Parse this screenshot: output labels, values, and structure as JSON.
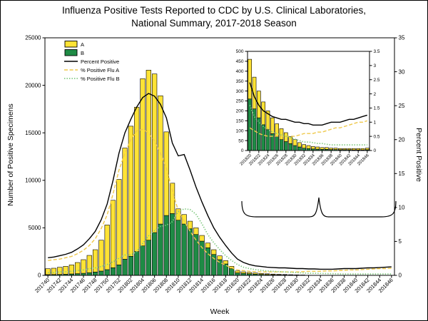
{
  "title": {
    "line1": "Influenza Positive Tests Reported to CDC by U.S. Clinical Laboratories,",
    "line2": "National Summary, 2017-2018 Season"
  },
  "axes": {
    "left_label": "Number of Positive Specimens",
    "right_label": "Percent Positive",
    "x_label": "Week"
  },
  "legend": [
    {
      "label": "A",
      "swatch": "box",
      "color_key": "flu_a_fill"
    },
    {
      "label": "B",
      "swatch": "box",
      "color_key": "flu_b_fill"
    },
    {
      "label": "Percent Positive",
      "swatch": "line",
      "color_key": "pct_total_line"
    },
    {
      "label": "% Positive Flu A",
      "swatch": "line-dashed",
      "color_key": "pct_a_line"
    },
    {
      "label": "% Positive Flu B",
      "swatch": "line-dotted",
      "color_key": "pct_b_line"
    }
  ],
  "colors": {
    "flu_a_fill": "#FFE335",
    "flu_b_fill": "#1E8B45",
    "pct_total_line": "#000000",
    "pct_a_line": "#EFC94C",
    "pct_b_line": "#7FC97F",
    "bar_outline": "#000000"
  },
  "chart_data": {
    "type": "bar",
    "subtype": "stacked-bars-with-percent-lines",
    "title": "Influenza Positive Tests Reported to CDC by U.S. Clinical Laboratories, National Summary, 2017-2018 Season",
    "xlabel": "Week",
    "ylabel_left": "Number of Positive Specimens",
    "ylabel_right": "Percent Positive",
    "ylim_left": [
      0,
      25000
    ],
    "ylim_right": [
      0,
      35
    ],
    "yticks_left": [
      0,
      5000,
      10000,
      15000,
      20000,
      25000
    ],
    "yticks_right": [
      0,
      5,
      10,
      15,
      20,
      25,
      30,
      35
    ],
    "xtick_every": 2,
    "grid": false,
    "legend_position": "top-left-inside",
    "categories": [
      "201740",
      "201741",
      "201742",
      "201743",
      "201744",
      "201745",
      "201746",
      "201747",
      "201748",
      "201749",
      "201750",
      "201751",
      "201752",
      "201801",
      "201802",
      "201803",
      "201804",
      "201805",
      "201806",
      "201807",
      "201808",
      "201809",
      "201810",
      "201811",
      "201812",
      "201813",
      "201814",
      "201815",
      "201816",
      "201817",
      "201818",
      "201819",
      "201820",
      "201821",
      "201822",
      "201823",
      "201824",
      "201825",
      "201826",
      "201827",
      "201828",
      "201829",
      "201830",
      "201831",
      "201832",
      "201833",
      "201834",
      "201835",
      "201836",
      "201837",
      "201838",
      "201839",
      "201840",
      "201841",
      "201842",
      "201843",
      "201844",
      "201845",
      "201846"
    ],
    "series": [
      {
        "name": "B",
        "kind": "bar",
        "stack": "specimens",
        "axis": "left",
        "color_key": "flu_b_fill",
        "values": [
          80,
          90,
          100,
          120,
          150,
          180,
          220,
          280,
          350,
          450,
          600,
          800,
          1100,
          1700,
          2000,
          2500,
          3100,
          3700,
          4500,
          5400,
          6300,
          6500,
          5800,
          5400,
          4900,
          4300,
          3600,
          2900,
          2200,
          1650,
          1200,
          700,
          260,
          210,
          165,
          130,
          105,
          85,
          70,
          55,
          45,
          35,
          25,
          18,
          12,
          10,
          8,
          7,
          6,
          6,
          5,
          5,
          4,
          4,
          4,
          3,
          3,
          3,
          4
        ]
      },
      {
        "name": "A",
        "kind": "bar",
        "stack": "specimens",
        "axis": "left",
        "color_key": "flu_a_fill",
        "values": [
          620,
          660,
          750,
          830,
          950,
          1170,
          1430,
          1820,
          2350,
          3250,
          4700,
          7100,
          9000,
          11700,
          13700,
          15200,
          17600,
          17900,
          16700,
          13500,
          8800,
          3200,
          1200,
          1000,
          800,
          700,
          600,
          500,
          500,
          400,
          350,
          250,
          200,
          160,
          135,
          115,
          95,
          80,
          65,
          55,
          45,
          35,
          30,
          22,
          18,
          15,
          12,
          11,
          9,
          9,
          7,
          7,
          6,
          6,
          6,
          7,
          7,
          7,
          8
        ]
      },
      {
        "name": "Percent Positive",
        "kind": "line",
        "axis": "right",
        "style": "solid",
        "color_key": "pct_total_line",
        "values": [
          2.6,
          2.7,
          2.9,
          3.1,
          3.4,
          3.9,
          4.5,
          5.4,
          6.5,
          8.2,
          10.5,
          14.0,
          18.0,
          21.0,
          23.0,
          24.8,
          26.2,
          26.8,
          26.4,
          25.2,
          23.2,
          19.5,
          17.6,
          17.8,
          15.5,
          13.0,
          10.8,
          8.8,
          7.0,
          5.6,
          4.4,
          3.3,
          2.4,
          1.9,
          1.6,
          1.4,
          1.3,
          1.2,
          1.15,
          1.1,
          1.1,
          1.05,
          1.0,
          1.0,
          0.95,
          0.95,
          0.9,
          0.9,
          0.9,
          0.95,
          1.0,
          1.0,
          1.0,
          1.05,
          1.1,
          1.1,
          1.15,
          1.2,
          1.25
        ]
      },
      {
        "name": "% Positive Flu A",
        "kind": "line",
        "axis": "right",
        "style": "dashed",
        "color_key": "pct_a_line",
        "values": [
          2.2,
          2.3,
          2.4,
          2.6,
          2.8,
          3.2,
          3.7,
          4.4,
          5.4,
          6.9,
          8.9,
          12.0,
          15.5,
          18.0,
          20.0,
          21.3,
          21.5,
          21.0,
          19.8,
          18.0,
          15.8,
          12.5,
          9.5,
          8.0,
          6.5,
          5.2,
          4.1,
          3.2,
          2.5,
          1.9,
          1.5,
          1.1,
          0.8,
          0.7,
          0.6,
          0.55,
          0.5,
          0.5,
          0.5,
          0.5,
          0.5,
          0.5,
          0.5,
          0.55,
          0.6,
          0.6,
          0.6,
          0.65,
          0.65,
          0.7,
          0.75,
          0.8,
          0.8,
          0.85,
          0.9,
          0.95,
          1.0,
          1.0,
          1.05
        ]
      },
      {
        "name": "% Positive Flu B",
        "kind": "line",
        "axis": "right",
        "style": "dotted",
        "color_key": "pct_b_line",
        "values": [
          0.4,
          0.4,
          0.5,
          0.5,
          0.6,
          0.7,
          0.8,
          1.0,
          1.1,
          1.3,
          1.6,
          2.0,
          2.5,
          3.0,
          3.0,
          3.5,
          4.7,
          5.8,
          6.6,
          7.2,
          7.4,
          7.9,
          9.4,
          9.8,
          9.7,
          9.0,
          7.6,
          6.0,
          4.8,
          3.8,
          2.9,
          2.2,
          1.6,
          1.2,
          1.0,
          0.85,
          0.75,
          0.65,
          0.6,
          0.55,
          0.5,
          0.45,
          0.4,
          0.35,
          0.3,
          0.3,
          0.28,
          0.25,
          0.25,
          0.22,
          0.2,
          0.2,
          0.2,
          0.2,
          0.2,
          0.2,
          0.2,
          0.2,
          0.2
        ]
      }
    ],
    "inset": {
      "description": "Zoomed view of late-season weeks",
      "start_category": "201820",
      "ylim_left": [
        0,
        500
      ],
      "ylim_right": [
        0,
        3.5
      ],
      "yticks_left": [
        0,
        50,
        100,
        150,
        200,
        250,
        300,
        350,
        400,
        450,
        500
      ],
      "yticks_right": [
        0,
        0.5,
        1,
        1.5,
        2,
        2.5,
        3,
        3.5
      ],
      "xtick_every": 2
    }
  }
}
